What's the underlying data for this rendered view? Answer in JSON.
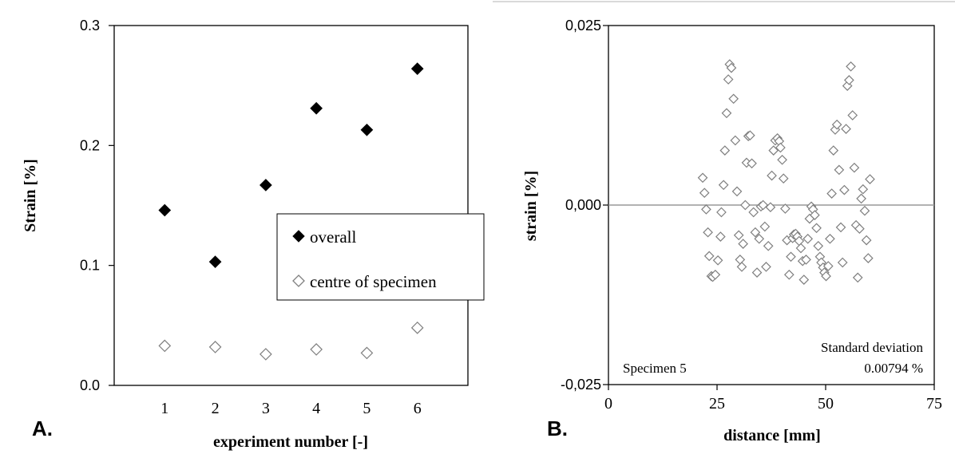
{
  "chart_data": [
    {
      "type": "scatter",
      "panel_label": "A.",
      "xlabel": "experiment number [-]",
      "ylabel": "Strain  [%]",
      "xlim": [
        0,
        7
      ],
      "ylim": [
        0,
        0.3
      ],
      "x_ticks": [
        1,
        2,
        3,
        4,
        5,
        6
      ],
      "x_tick_labels": [
        "1",
        "2",
        "3",
        "4",
        "5",
        "6"
      ],
      "y_ticks": [
        0,
        0.1,
        0.2,
        0.3
      ],
      "y_tick_labels": [
        "0.0",
        "0.1",
        "0.2",
        "0.3"
      ],
      "grid": false,
      "legend_position": "right-middle",
      "series": [
        {
          "name": "overall",
          "marker": "filled-diamond",
          "color": "#000000",
          "x": [
            1,
            2,
            3,
            4,
            5,
            6
          ],
          "y": [
            0.146,
            0.103,
            0.167,
            0.231,
            0.213,
            0.264
          ]
        },
        {
          "name": "centre of specimen",
          "marker": "open-diamond",
          "color": "#7f7f7f",
          "x": [
            1,
            2,
            3,
            4,
            5,
            6
          ],
          "y": [
            0.033,
            0.032,
            0.026,
            0.03,
            0.027,
            0.048
          ]
        }
      ]
    },
    {
      "type": "scatter",
      "panel_label": "B.",
      "xlabel": "distance [mm]",
      "ylabel": "strain [%]",
      "xlim": [
        0,
        75
      ],
      "ylim": [
        -0.025,
        0.025
      ],
      "x_ticks": [
        0,
        25,
        50,
        75
      ],
      "x_tick_labels": [
        "0",
        "25",
        "50",
        "75"
      ],
      "y_ticks": [
        -0.025,
        0,
        0.025
      ],
      "y_tick_labels": [
        "-0,025",
        "0,000",
        "0,025"
      ],
      "grid": false,
      "zero_line_color": "#999999",
      "annotations": {
        "specimen": "Specimen 5",
        "std_label": "Standard deviation",
        "std_value": "0.00794 %"
      },
      "series": [
        {
          "marker": "open-diamond",
          "color": "#7f7f7f",
          "points": [
            [
              21.7,
              0.0038
            ],
            [
              22.1,
              0.0017
            ],
            [
              22.5,
              -0.0006
            ],
            [
              22.9,
              -0.0038
            ],
            [
              23.2,
              -0.0071
            ],
            [
              23.7,
              -0.0099
            ],
            [
              24.0,
              -0.01
            ],
            [
              24.6,
              -0.0097
            ],
            [
              25.2,
              -0.0077
            ],
            [
              25.8,
              -0.0044
            ],
            [
              26.0,
              -0.001
            ],
            [
              26.5,
              0.0028
            ],
            [
              26.8,
              0.0076
            ],
            [
              27.2,
              0.0128
            ],
            [
              27.6,
              0.0175
            ],
            [
              27.9,
              0.0196
            ],
            [
              28.3,
              0.0191
            ],
            [
              28.8,
              0.0148
            ],
            [
              29.2,
              0.009
            ],
            [
              29.6,
              0.0019
            ],
            [
              30.0,
              -0.0042
            ],
            [
              30.3,
              -0.0076
            ],
            [
              30.7,
              -0.0086
            ],
            [
              31.0,
              -0.0054
            ],
            [
              31.5,
              0.0
            ],
            [
              31.8,
              0.0059
            ],
            [
              32.2,
              0.0096
            ],
            [
              32.6,
              0.0097
            ],
            [
              33.0,
              0.0058
            ],
            [
              33.4,
              -0.001
            ],
            [
              33.8,
              -0.0038
            ],
            [
              34.2,
              -0.0094
            ],
            [
              34.7,
              -0.0047
            ],
            [
              35.1,
              -0.0002
            ],
            [
              35.6,
              0.0
            ],
            [
              36.0,
              -0.003
            ],
            [
              36.3,
              -0.0086
            ],
            [
              36.8,
              -0.0057
            ],
            [
              37.3,
              -0.0003
            ],
            [
              37.6,
              0.0041
            ],
            [
              38.0,
              0.0076
            ],
            [
              38.4,
              0.009
            ],
            [
              38.9,
              0.0093
            ],
            [
              39.3,
              0.0089
            ],
            [
              39.6,
              0.008
            ],
            [
              40.0,
              0.0063
            ],
            [
              40.3,
              0.0037
            ],
            [
              40.7,
              -0.0005
            ],
            [
              41.1,
              -0.0049
            ],
            [
              41.6,
              -0.0097
            ],
            [
              42.0,
              -0.0072
            ],
            [
              42.4,
              -0.0046
            ],
            [
              42.7,
              -0.0041
            ],
            [
              43.1,
              -0.004
            ],
            [
              43.5,
              -0.0044
            ],
            [
              43.9,
              -0.005
            ],
            [
              44.3,
              -0.006
            ],
            [
              44.7,
              -0.0078
            ],
            [
              45.0,
              -0.0104
            ],
            [
              45.5,
              -0.0076
            ],
            [
              45.9,
              -0.0047
            ],
            [
              46.3,
              -0.0019
            ],
            [
              46.7,
              -0.0002
            ],
            [
              47.1,
              -0.0006
            ],
            [
              47.5,
              -0.0014
            ],
            [
              47.9,
              -0.0032
            ],
            [
              48.3,
              -0.0057
            ],
            [
              48.7,
              -0.0072
            ],
            [
              49.0,
              -0.008
            ],
            [
              49.4,
              -0.0087
            ],
            [
              49.7,
              -0.0094
            ],
            [
              50.1,
              -0.0099
            ],
            [
              50.6,
              -0.0085
            ],
            [
              51.0,
              -0.0047
            ],
            [
              51.4,
              0.0016
            ],
            [
              51.8,
              0.0076
            ],
            [
              52.2,
              0.0105
            ],
            [
              52.6,
              0.0112
            ],
            [
              53.1,
              0.0049
            ],
            [
              53.5,
              -0.0031
            ],
            [
              53.9,
              -0.008
            ],
            [
              54.3,
              0.0021
            ],
            [
              54.7,
              0.0106
            ],
            [
              55.0,
              0.0166
            ],
            [
              55.4,
              0.0174
            ],
            [
              55.8,
              0.0193
            ],
            [
              56.2,
              0.0125
            ],
            [
              56.6,
              0.0052
            ],
            [
              57.0,
              -0.0028
            ],
            [
              57.4,
              -0.0101
            ],
            [
              57.8,
              -0.0033
            ],
            [
              58.2,
              0.0009
            ],
            [
              58.6,
              0.0022
            ],
            [
              59.0,
              -0.0008
            ],
            [
              59.4,
              -0.0049
            ],
            [
              59.8,
              -0.0074
            ],
            [
              60.2,
              0.0036
            ]
          ]
        }
      ]
    }
  ]
}
